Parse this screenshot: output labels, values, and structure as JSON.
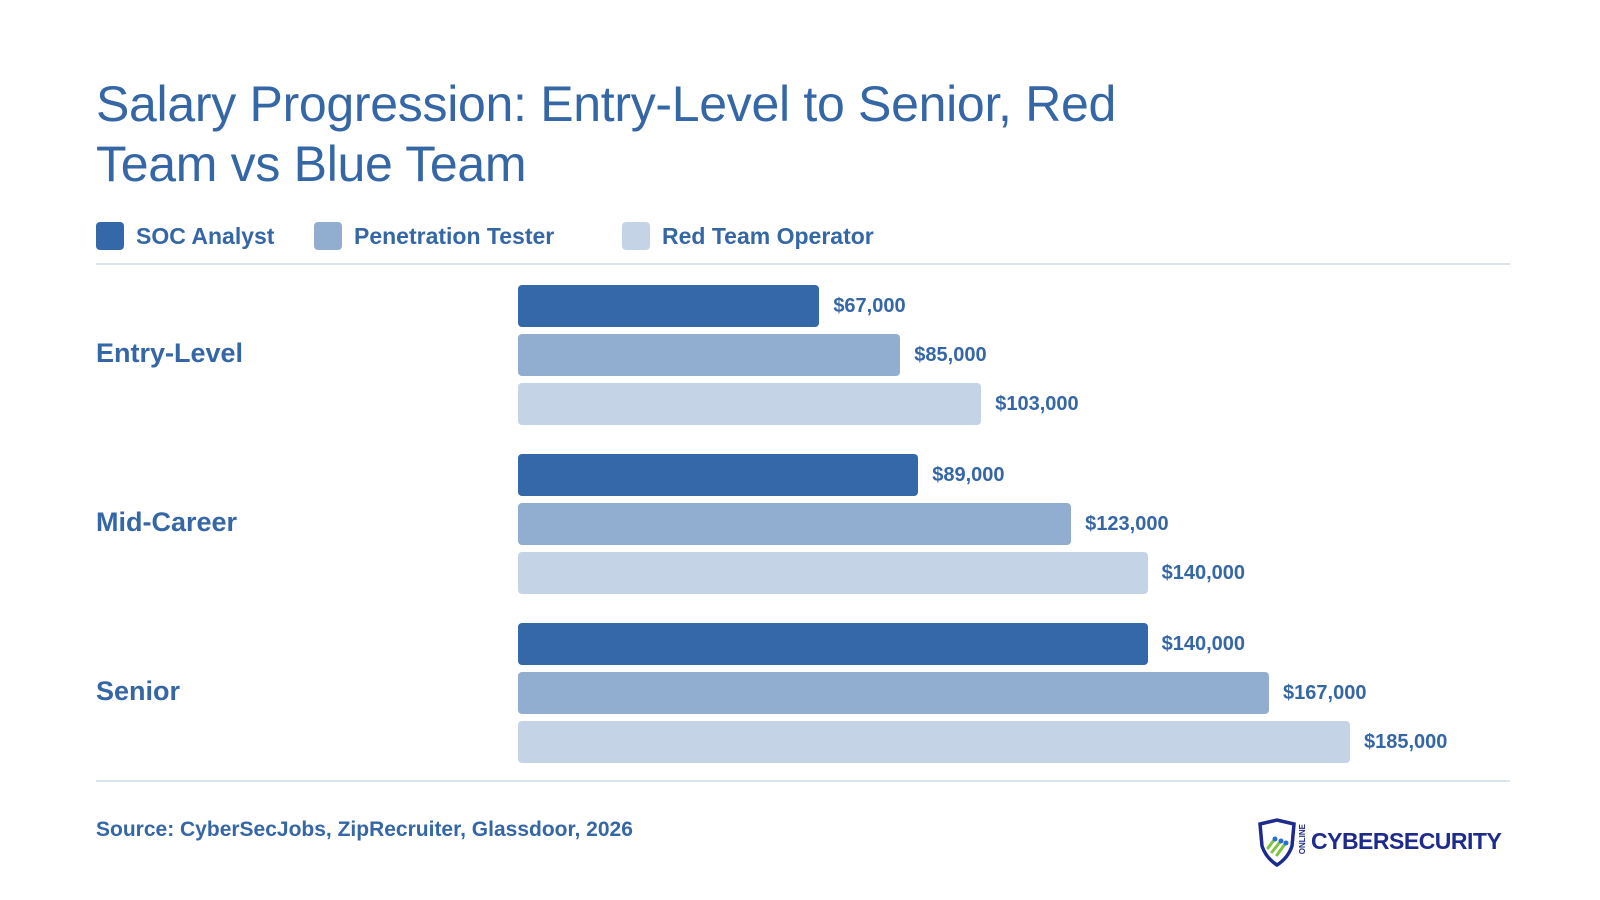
{
  "chart_data": {
    "type": "bar",
    "orientation": "horizontal",
    "title": "Salary Progression: Entry-Level to Senior, Red Team vs Blue Team",
    "categories": [
      "Entry-Level",
      "Mid-Career",
      "Senior"
    ],
    "series": [
      {
        "name": "SOC Analyst",
        "color": "#3568a8",
        "values": [
          67000,
          89000,
          140000
        ],
        "labels": [
          "$67,000",
          "$89,000",
          "$140,000"
        ]
      },
      {
        "name": "Penetration Tester",
        "color": "#91aed1",
        "values": [
          85000,
          123000,
          167000
        ],
        "labels": [
          "$85,000",
          "$123,000",
          "$167,000"
        ]
      },
      {
        "name": "Red Team Operator",
        "color": "#c4d4e6",
        "values": [
          103000,
          140000,
          185000
        ],
        "labels": [
          "$103,000",
          "$140,000",
          "$185,000"
        ]
      }
    ],
    "xlim": [
      0,
      185000
    ],
    "legend_position": "top-left",
    "grid": false
  },
  "source": "Source: CyberSecJobs, ZipRecruiter, Glassdoor, 2026",
  "logo": {
    "name": "CYBERSECURITY",
    "small": "ONLINE",
    "icon": "shield-icon"
  },
  "colors": {
    "text": "#3566a6",
    "rule": "#dce5ee"
  }
}
